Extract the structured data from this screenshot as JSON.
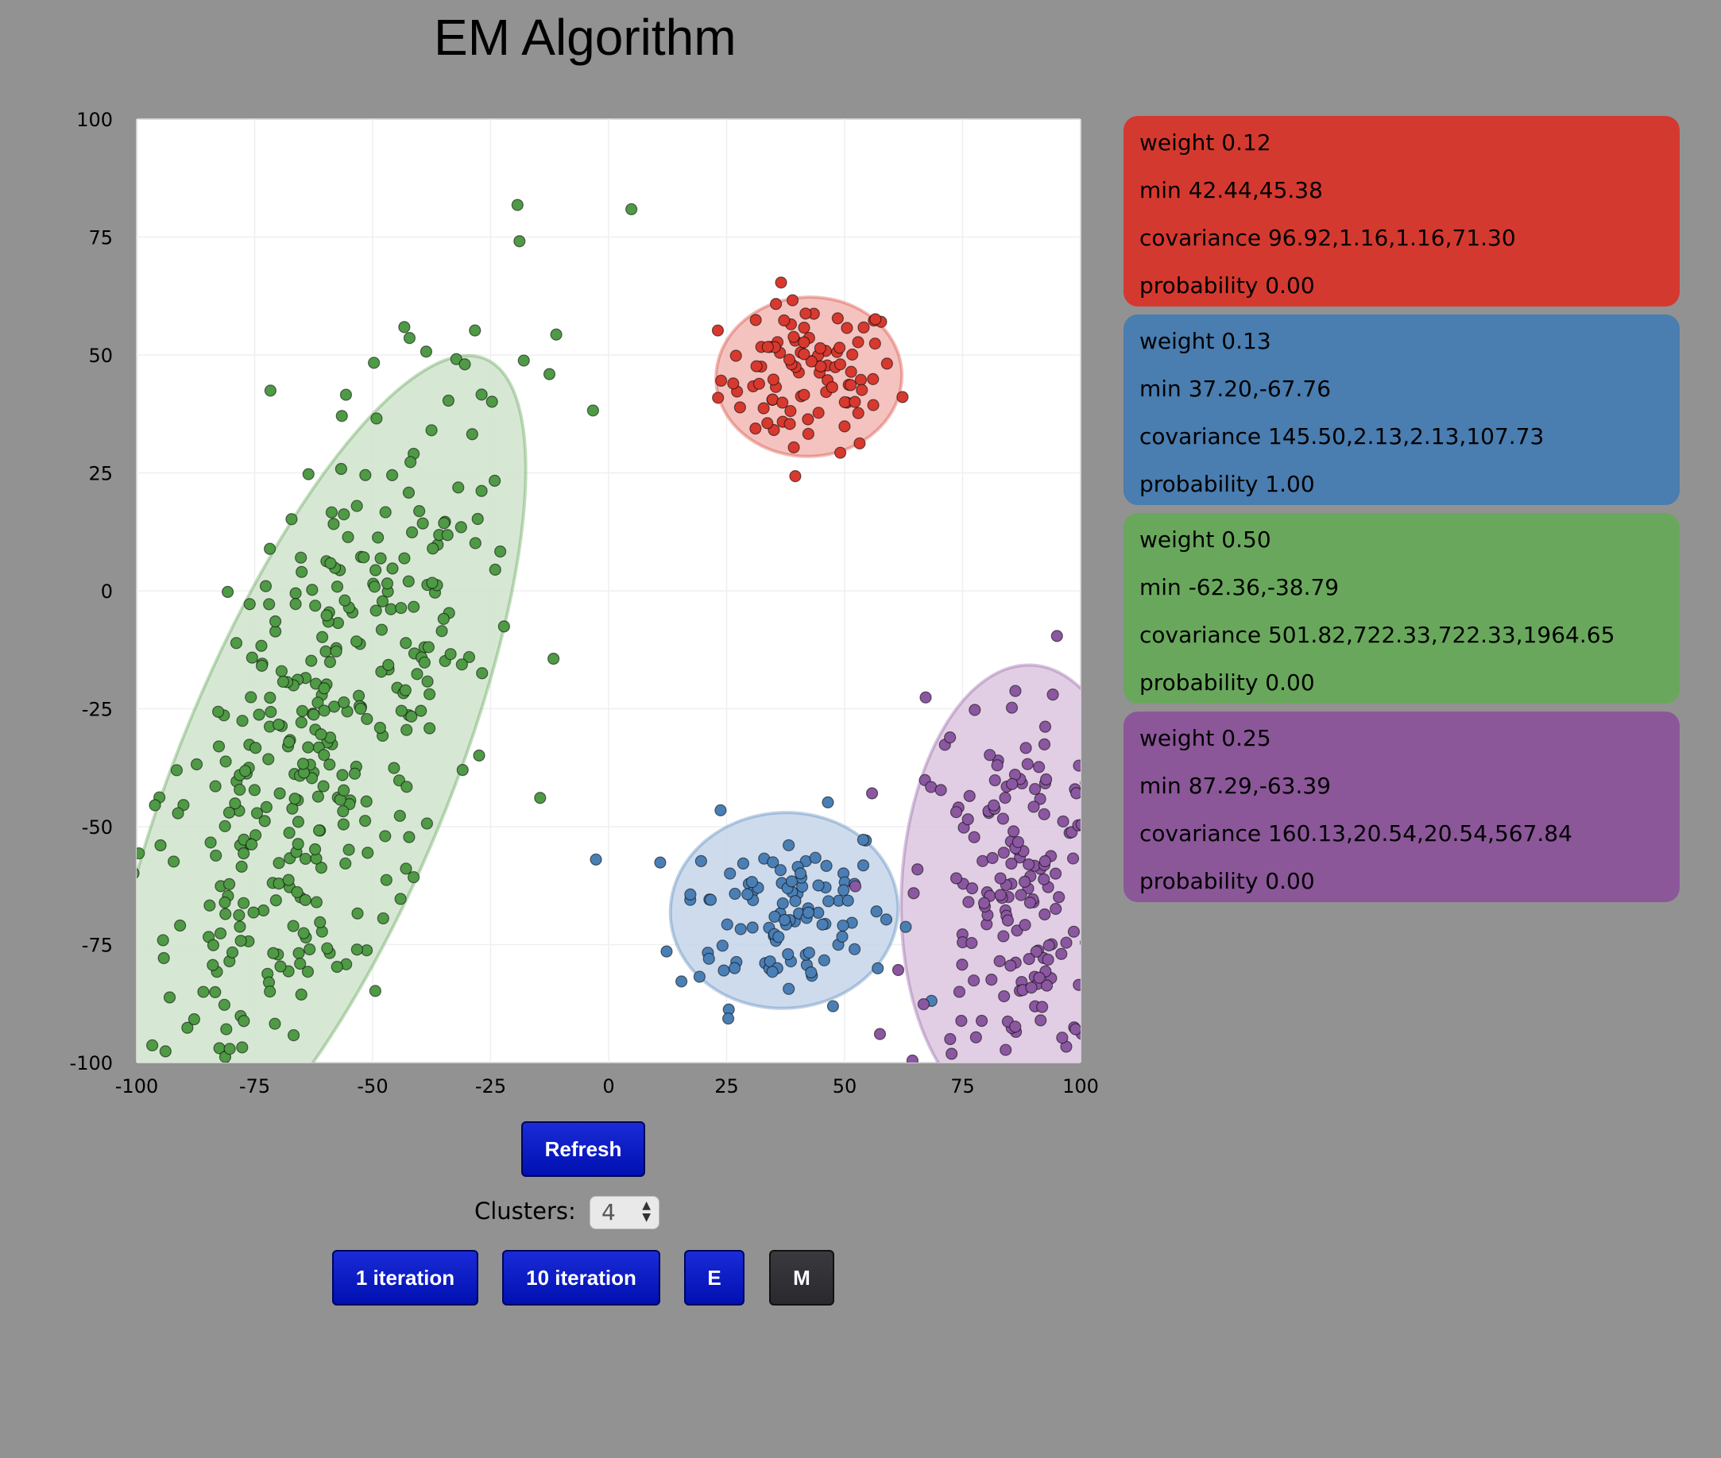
{
  "page": {
    "title": "EM Algorithm"
  },
  "chart_data": {
    "type": "scatter",
    "xlim": [
      -100,
      100
    ],
    "ylim": [
      -100,
      100
    ],
    "x_ticks": [
      -100,
      -75,
      -50,
      -25,
      0,
      25,
      50,
      75,
      100
    ],
    "y_ticks": [
      -100,
      -75,
      -50,
      -25,
      0,
      25,
      50,
      75,
      100
    ],
    "tick_labels_x": [
      "-100",
      "-75",
      "-50",
      "-25",
      "0",
      "25",
      "50",
      "75",
      "100"
    ],
    "tick_labels_y": [
      "-100",
      "-75",
      "-50",
      "-25",
      "0",
      "25",
      "50",
      "75",
      "100"
    ],
    "grid": true,
    "clusters": [
      {
        "color": "#d7392f",
        "fill": "#f2b8b4",
        "mean": [
          42.44,
          45.38
        ],
        "covariance": [
          96.92,
          1.16,
          1.16,
          71.3
        ],
        "count": 95
      },
      {
        "color": "#4a7fb5",
        "fill": "#c4d5ea",
        "mean": [
          37.2,
          -67.76
        ],
        "covariance": [
          145.5,
          2.13,
          2.13,
          107.73
        ],
        "count": 105
      },
      {
        "color": "#4f9a45",
        "fill": "#cfe4cb",
        "mean": [
          -62.36,
          -38.79
        ],
        "covariance": [
          501.82,
          722.33,
          722.33,
          1964.65
        ],
        "count": 400
      },
      {
        "color": "#8b57a0",
        "fill": "#dcc5df",
        "mean": [
          87.29,
          -63.39
        ],
        "covariance": [
          160.13,
          20.54,
          20.54,
          567.84
        ],
        "count": 200
      }
    ]
  },
  "panels": [
    {
      "color": "#d4392f",
      "weight": "weight 0.12",
      "min": "min 42.44,45.38",
      "covariance": "covariance 96.92,1.16,1.16,71.30",
      "probability": "probability 0.00"
    },
    {
      "color": "#4a7db0",
      "weight": "weight 0.13",
      "min": "min 37.20,-67.76",
      "covariance": "covariance 145.50,2.13,2.13,107.73",
      "probability": "probability 1.00"
    },
    {
      "color": "#69a85c",
      "weight": "weight 0.50",
      "min": "min -62.36,-38.79",
      "covariance": "covariance 501.82,722.33,722.33,1964.65",
      "probability": "probability 0.00"
    },
    {
      "color": "#8b5799",
      "weight": "weight 0.25",
      "min": "min 87.29,-63.39",
      "covariance": "covariance 160.13,20.54,20.54,567.84",
      "probability": "probability 0.00"
    }
  ],
  "controls": {
    "refresh_label": "Refresh",
    "clusters_label": "Clusters:",
    "clusters_value": "4",
    "iter1_label": "1 iteration",
    "iter10_label": "10 iteration",
    "e_label": "E",
    "m_label": "M"
  }
}
